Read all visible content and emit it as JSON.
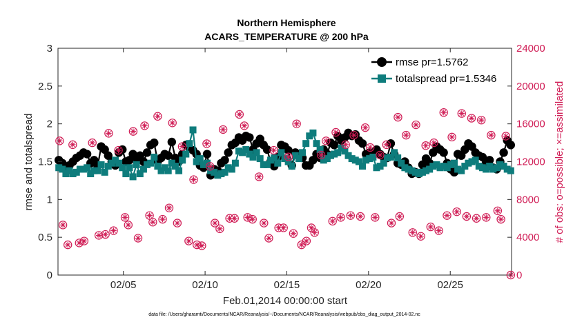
{
  "chart_data": {
    "type": "line",
    "title": "Northern Hemisphere",
    "subtitle": "ACARS_TEMPERATURE @ 200 hPa",
    "xlabel": "Feb.01,2014 00:00:00 start",
    "ylabel": "rmse and totalspread",
    "ylabel_right": "# of obs: o=possible; ×=assimilated",
    "footnote": "data file: /Users/gharamti/Documents/NCAR/Reanalysis/~/Documents/NCAR/Reanalysis/webpub/obs_diag_output_2014-02.nc",
    "xlim": [
      1,
      28.75
    ],
    "ylim": [
      0,
      3
    ],
    "ylim_right": [
      0,
      24000
    ],
    "x_ticks": [
      5,
      10,
      15,
      20,
      25
    ],
    "x_tick_labels": [
      "02/05",
      "02/10",
      "02/15",
      "02/20",
      "02/25"
    ],
    "y_ticks": [
      "0",
      "0.5",
      "1",
      "1.5",
      "2",
      "2.5",
      "3"
    ],
    "y_ticks_right": [
      "0",
      "4000",
      "8000",
      "12000",
      "16000",
      "20000",
      "24000"
    ],
    "legend_position": "top-right",
    "colors": {
      "rmse": "#000000",
      "totalspread": "#0e7c7c",
      "obs": "#d01c55"
    },
    "series": [
      {
        "name": "rmse pr=1.5762",
        "values": [
          1.52,
          1.48,
          1.4,
          1.45,
          1.5,
          1.55,
          1.58,
          1.62,
          1.6,
          1.48,
          1.52,
          1.44,
          1.7,
          1.66,
          1.58,
          1.5,
          1.45,
          1.62,
          1.66,
          1.5,
          1.52,
          1.6,
          1.55,
          1.58,
          1.5,
          1.62,
          1.72,
          1.75,
          1.5,
          1.55,
          1.6,
          1.58,
          1.76,
          1.55,
          1.5,
          1.6,
          1.72,
          1.68,
          1.65,
          1.6,
          1.45,
          1.42,
          1.6,
          1.32,
          1.4,
          1.38,
          1.48,
          1.52,
          1.62,
          1.72,
          1.75,
          1.82,
          1.78,
          1.84,
          1.82,
          1.66,
          1.74,
          1.8,
          1.72,
          1.66,
          1.5,
          1.44,
          1.56,
          1.72,
          1.7,
          1.65,
          1.45,
          1.62,
          1.6,
          1.55,
          1.45,
          1.45,
          1.52,
          1.6,
          1.55,
          1.66,
          1.6,
          1.75,
          1.72,
          1.84,
          1.78,
          1.82,
          1.88,
          1.84,
          1.86,
          1.78,
          1.74,
          1.6,
          1.62,
          1.62,
          1.66,
          1.6,
          1.56,
          1.55,
          1.74,
          1.6,
          1.48,
          1.46,
          1.5,
          1.42,
          1.34,
          1.36,
          1.34,
          1.46,
          1.54,
          1.48,
          1.62,
          1.7,
          1.66,
          1.62,
          1.48,
          1.4,
          1.36,
          1.6,
          1.58,
          1.66,
          1.74,
          1.7,
          1.62,
          1.58,
          1.56,
          1.5,
          1.52,
          1.42,
          1.4,
          1.5,
          1.62,
          1.78,
          1.72
        ],
        "marker": "circle",
        "color": "#000000"
      },
      {
        "name": "totalspread pr=1.5346",
        "values": [
          1.42,
          1.4,
          1.34,
          1.38,
          1.34,
          1.36,
          1.4,
          1.4,
          1.42,
          1.34,
          1.38,
          1.38,
          1.46,
          1.36,
          1.44,
          1.48,
          1.52,
          1.48,
          1.42,
          1.34,
          1.42,
          1.3,
          1.46,
          1.34,
          1.4,
          1.46,
          1.48,
          1.56,
          1.44,
          1.38,
          1.42,
          1.38,
          1.48,
          1.44,
          1.38,
          1.52,
          1.6,
          1.74,
          1.92,
          1.5,
          1.54,
          1.46,
          1.48,
          1.38,
          1.36,
          1.32,
          1.34,
          1.36,
          1.42,
          1.4,
          1.48,
          1.64,
          1.62,
          1.66,
          1.6,
          1.56,
          1.62,
          1.54,
          1.46,
          1.46,
          1.52,
          1.55,
          1.48,
          1.62,
          1.54,
          1.5,
          1.44,
          1.58,
          1.54,
          1.62,
          1.74,
          1.84,
          1.88,
          1.74,
          1.66,
          1.52,
          1.54,
          1.58,
          1.6,
          1.62,
          1.68,
          1.64,
          1.58,
          1.54,
          1.52,
          1.5,
          1.44,
          1.52,
          1.54,
          1.56,
          1.42,
          1.44,
          1.48,
          1.55,
          1.56,
          1.62,
          1.55,
          1.48,
          1.42,
          1.4,
          1.38,
          1.36,
          1.34,
          1.36,
          1.38,
          1.4,
          1.44,
          1.46,
          1.42,
          1.44,
          1.42,
          1.46,
          1.48,
          1.4,
          1.38,
          1.44,
          1.48,
          1.5,
          1.52,
          1.44,
          1.42,
          1.4,
          1.44,
          1.4,
          1.42,
          1.46,
          1.44,
          1.4,
          1.38
        ],
        "marker": "square",
        "color": "#0e7c7c"
      }
    ],
    "obs_possible_points": [
      [
        1.1,
        14200
      ],
      [
        1.3,
        5300
      ],
      [
        1.6,
        3200
      ],
      [
        1.9,
        13800
      ],
      [
        2.3,
        3400
      ],
      [
        2.6,
        3600
      ],
      [
        3.1,
        14000
      ],
      [
        3.5,
        4200
      ],
      [
        3.9,
        4300
      ],
      [
        4.1,
        15000
      ],
      [
        4.4,
        4700
      ],
      [
        4.7,
        13200
      ],
      [
        5.1,
        6100
      ],
      [
        5.3,
        5300
      ],
      [
        5.6,
        15200
      ],
      [
        5.9,
        3900
      ],
      [
        6.3,
        15800
      ],
      [
        6.6,
        6300
      ],
      [
        6.8,
        5600
      ],
      [
        7.1,
        16800
      ],
      [
        7.4,
        5900
      ],
      [
        7.8,
        7100
      ],
      [
        8.0,
        16100
      ],
      [
        8.3,
        5500
      ],
      [
        8.6,
        13600
      ],
      [
        9.0,
        3600
      ],
      [
        9.3,
        10100
      ],
      [
        9.5,
        3200
      ],
      [
        9.8,
        3100
      ],
      [
        10.1,
        13900
      ],
      [
        10.3,
        11500
      ],
      [
        10.6,
        5500
      ],
      [
        10.9,
        4900
      ],
      [
        11.1,
        15400
      ],
      [
        11.5,
        6000
      ],
      [
        11.8,
        6000
      ],
      [
        12.1,
        17000
      ],
      [
        12.4,
        15800
      ],
      [
        12.6,
        6100
      ],
      [
        12.9,
        5900
      ],
      [
        13.3,
        10400
      ],
      [
        13.6,
        5500
      ],
      [
        13.9,
        3900
      ],
      [
        14.2,
        13200
      ],
      [
        14.5,
        5000
      ],
      [
        14.8,
        5000
      ],
      [
        15.1,
        12500
      ],
      [
        15.4,
        4400
      ],
      [
        15.6,
        16000
      ],
      [
        15.9,
        3200
      ],
      [
        16.2,
        3600
      ],
      [
        16.5,
        5000
      ],
      [
        16.7,
        4500
      ],
      [
        17.1,
        12700
      ],
      [
        17.4,
        14200
      ],
      [
        17.8,
        5700
      ],
      [
        18.0,
        15100
      ],
      [
        18.3,
        6100
      ],
      [
        18.6,
        13800
      ],
      [
        18.9,
        6300
      ],
      [
        19.1,
        14800
      ],
      [
        19.5,
        6200
      ],
      [
        19.8,
        15600
      ],
      [
        20.1,
        13500
      ],
      [
        20.4,
        6100
      ],
      [
        20.7,
        12700
      ],
      [
        21.1,
        13800
      ],
      [
        21.4,
        5500
      ],
      [
        21.8,
        16700
      ],
      [
        21.9,
        6200
      ],
      [
        22.3,
        14800
      ],
      [
        22.7,
        4500
      ],
      [
        22.9,
        15900
      ],
      [
        23.2,
        4100
      ],
      [
        23.5,
        13700
      ],
      [
        23.8,
        5100
      ],
      [
        24.0,
        14000
      ],
      [
        24.3,
        4700
      ],
      [
        24.6,
        17200
      ],
      [
        24.8,
        6300
      ],
      [
        25.1,
        14600
      ],
      [
        25.4,
        6700
      ],
      [
        25.7,
        17100
      ],
      [
        26.0,
        6200
      ],
      [
        26.3,
        16600
      ],
      [
        26.6,
        6000
      ],
      [
        26.9,
        16400
      ],
      [
        27.2,
        6100
      ],
      [
        27.5,
        14800
      ],
      [
        27.9,
        6800
      ],
      [
        28.1,
        5900
      ],
      [
        28.4,
        14700
      ],
      [
        28.7,
        0
      ]
    ]
  }
}
